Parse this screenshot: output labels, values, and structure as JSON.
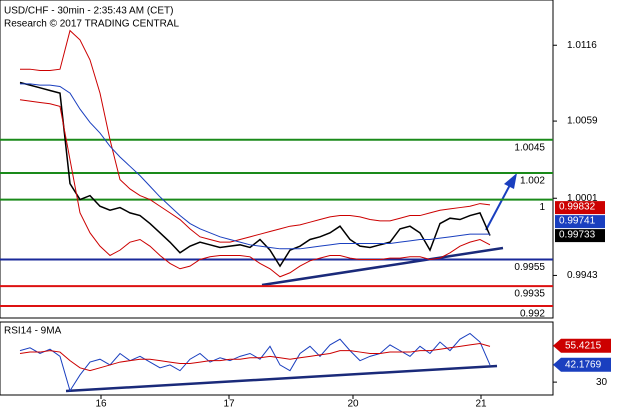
{
  "chart_data": {
    "type": "line",
    "title": "USD/CHF - 30min - 2:35:43 AM (CET)",
    "subtitle": "Research © 2017 TRADING CENTRAL",
    "xlim": [
      -2,
      53.3
    ],
    "xticks": [
      {
        "value": 8.1,
        "label": "16"
      },
      {
        "value": 20.9,
        "label": "17"
      },
      {
        "value": 33.3,
        "label": "20"
      },
      {
        "value": 46.1,
        "label": "21"
      }
    ],
    "ylim": [
      0.9911,
      1.015
    ],
    "yticks": [
      0.9943,
      1.0001,
      1.0059,
      1.0116
    ],
    "series": [
      {
        "name": "price",
        "color": "#000000",
        "values": [
          1.0088,
          1.0086,
          1.0084,
          1.0082,
          1.008,
          1.0012,
          1.0,
          1.0003,
          0.9995,
          0.9992,
          0.9994,
          0.999,
          0.9988,
          0.9982,
          0.9975,
          0.9968,
          0.996,
          0.9965,
          0.9968,
          0.9966,
          0.9964,
          0.9965,
          0.9966,
          0.9964,
          0.997,
          0.9962,
          0.995,
          0.9962,
          0.9965,
          0.997,
          0.9972,
          0.9975,
          0.998,
          0.997,
          0.9965,
          0.9964,
          0.9966,
          0.9968,
          0.9978,
          0.998,
          0.9975,
          0.9962,
          0.9982,
          0.9986,
          0.9985,
          0.9988,
          0.999,
          0.9973
        ]
      },
      {
        "name": "upper",
        "color": "#cc0000",
        "values": [
          1.0098,
          1.0098,
          1.0097,
          1.0097,
          1.0098,
          1.0127,
          1.012,
          1.0105,
          1.008,
          1.0045,
          1.0015,
          1.0008,
          1.0003,
          1.0,
          0.9995,
          0.999,
          0.9985,
          0.9978,
          0.9972,
          0.997,
          0.9968,
          0.9968,
          0.997,
          0.9972,
          0.9974,
          0.9976,
          0.9978,
          0.998,
          0.9981,
          0.9983,
          0.9985,
          0.9987,
          0.9988,
          0.9988,
          0.9987,
          0.9985,
          0.9984,
          0.9984,
          0.9986,
          0.9988,
          0.9988,
          0.999,
          0.9992,
          0.9993,
          0.9994,
          0.9995,
          0.9997,
          0.9996
        ]
      },
      {
        "name": "lower",
        "color": "#cc0000",
        "values": [
          1.0075,
          1.0074,
          1.0073,
          1.0072,
          1.007,
          1.003,
          0.999,
          0.9975,
          0.9965,
          0.9958,
          0.9962,
          0.9968,
          0.997,
          0.9965,
          0.9958,
          0.9952,
          0.9948,
          0.995,
          0.9955,
          0.9957,
          0.9958,
          0.9958,
          0.9958,
          0.9957,
          0.9952,
          0.9948,
          0.9942,
          0.9945,
          0.995,
          0.9954,
          0.9956,
          0.9958,
          0.9958,
          0.9956,
          0.9955,
          0.9955,
          0.9955,
          0.9956,
          0.9956,
          0.9957,
          0.9957,
          0.9955,
          0.9956,
          0.996,
          0.9965,
          0.9968,
          0.997,
          0.9966
        ]
      },
      {
        "name": "ma",
        "color": "#1a3fbf",
        "values": [
          1.0087,
          1.0087,
          1.0086,
          1.0086,
          1.0085,
          1.008,
          1.0068,
          1.0058,
          1.005,
          1.004,
          1.0032,
          1.0025,
          1.0018,
          1.001,
          1.0002,
          0.9995,
          0.9988,
          0.9982,
          0.9978,
          0.9975,
          0.9972,
          0.997,
          0.9968,
          0.9966,
          0.9965,
          0.9964,
          0.9963,
          0.9963,
          0.9963,
          0.9964,
          0.9965,
          0.9966,
          0.9967,
          0.9967,
          0.9967,
          0.9967,
          0.9967,
          0.9967,
          0.9968,
          0.9969,
          0.997,
          0.997,
          0.9971,
          0.9972,
          0.9973,
          0.9974,
          0.9974,
          0.9974
        ]
      }
    ],
    "levels": [
      {
        "value": 1.0045,
        "color": "#1a8a1a"
      },
      {
        "value": 1.002,
        "color": "#1a8a1a"
      },
      {
        "value": 1,
        "color": "#1a8a1a"
      },
      {
        "value": 0.9955,
        "color": "#1a2a9a"
      },
      {
        "value": 0.9935,
        "color": "#dd1111"
      },
      {
        "value": 0.992,
        "color": "#dd1111"
      }
    ],
    "price_tags": [
      {
        "value": 0.99832,
        "color": "#cc0000"
      },
      {
        "value": 0.99741,
        "color": "#1a3fbf"
      },
      {
        "value": 0.99733,
        "color": "#000000"
      }
    ],
    "rsi": {
      "title": "RSI14 - 9MA",
      "ylim": [
        21,
        72
      ],
      "yticks": [
        30
      ],
      "series": [
        {
          "name": "rsi",
          "color": "#1a3fbf",
          "values": [
            52,
            54,
            50,
            53,
            48,
            24,
            35,
            44,
            46,
            42,
            50,
            45,
            48,
            44,
            40,
            42,
            38,
            46,
            50,
            44,
            47,
            45,
            48,
            50,
            46,
            55,
            42,
            38,
            50,
            55,
            48,
            56,
            60,
            52,
            45,
            48,
            50,
            56,
            52,
            48,
            55,
            50,
            58,
            52,
            60,
            64,
            58,
            42
          ]
        },
        {
          "name": "rsi-ma",
          "color": "#cc0000",
          "values": [
            50,
            51,
            51,
            52,
            51,
            45,
            40,
            38,
            40,
            42,
            44,
            45,
            46,
            46,
            45,
            44,
            43,
            43,
            44,
            45,
            45,
            46,
            46,
            47,
            47,
            48,
            47,
            46,
            47,
            48,
            49,
            50,
            52,
            52,
            51,
            50,
            50,
            51,
            51,
            51,
            52,
            52,
            53,
            54,
            55,
            56,
            57,
            55
          ]
        }
      ],
      "tags": [
        {
          "value": 55.4215,
          "color": "#cc0000"
        },
        {
          "value": 42.1769,
          "color": "#1a3fbf"
        }
      ]
    }
  }
}
